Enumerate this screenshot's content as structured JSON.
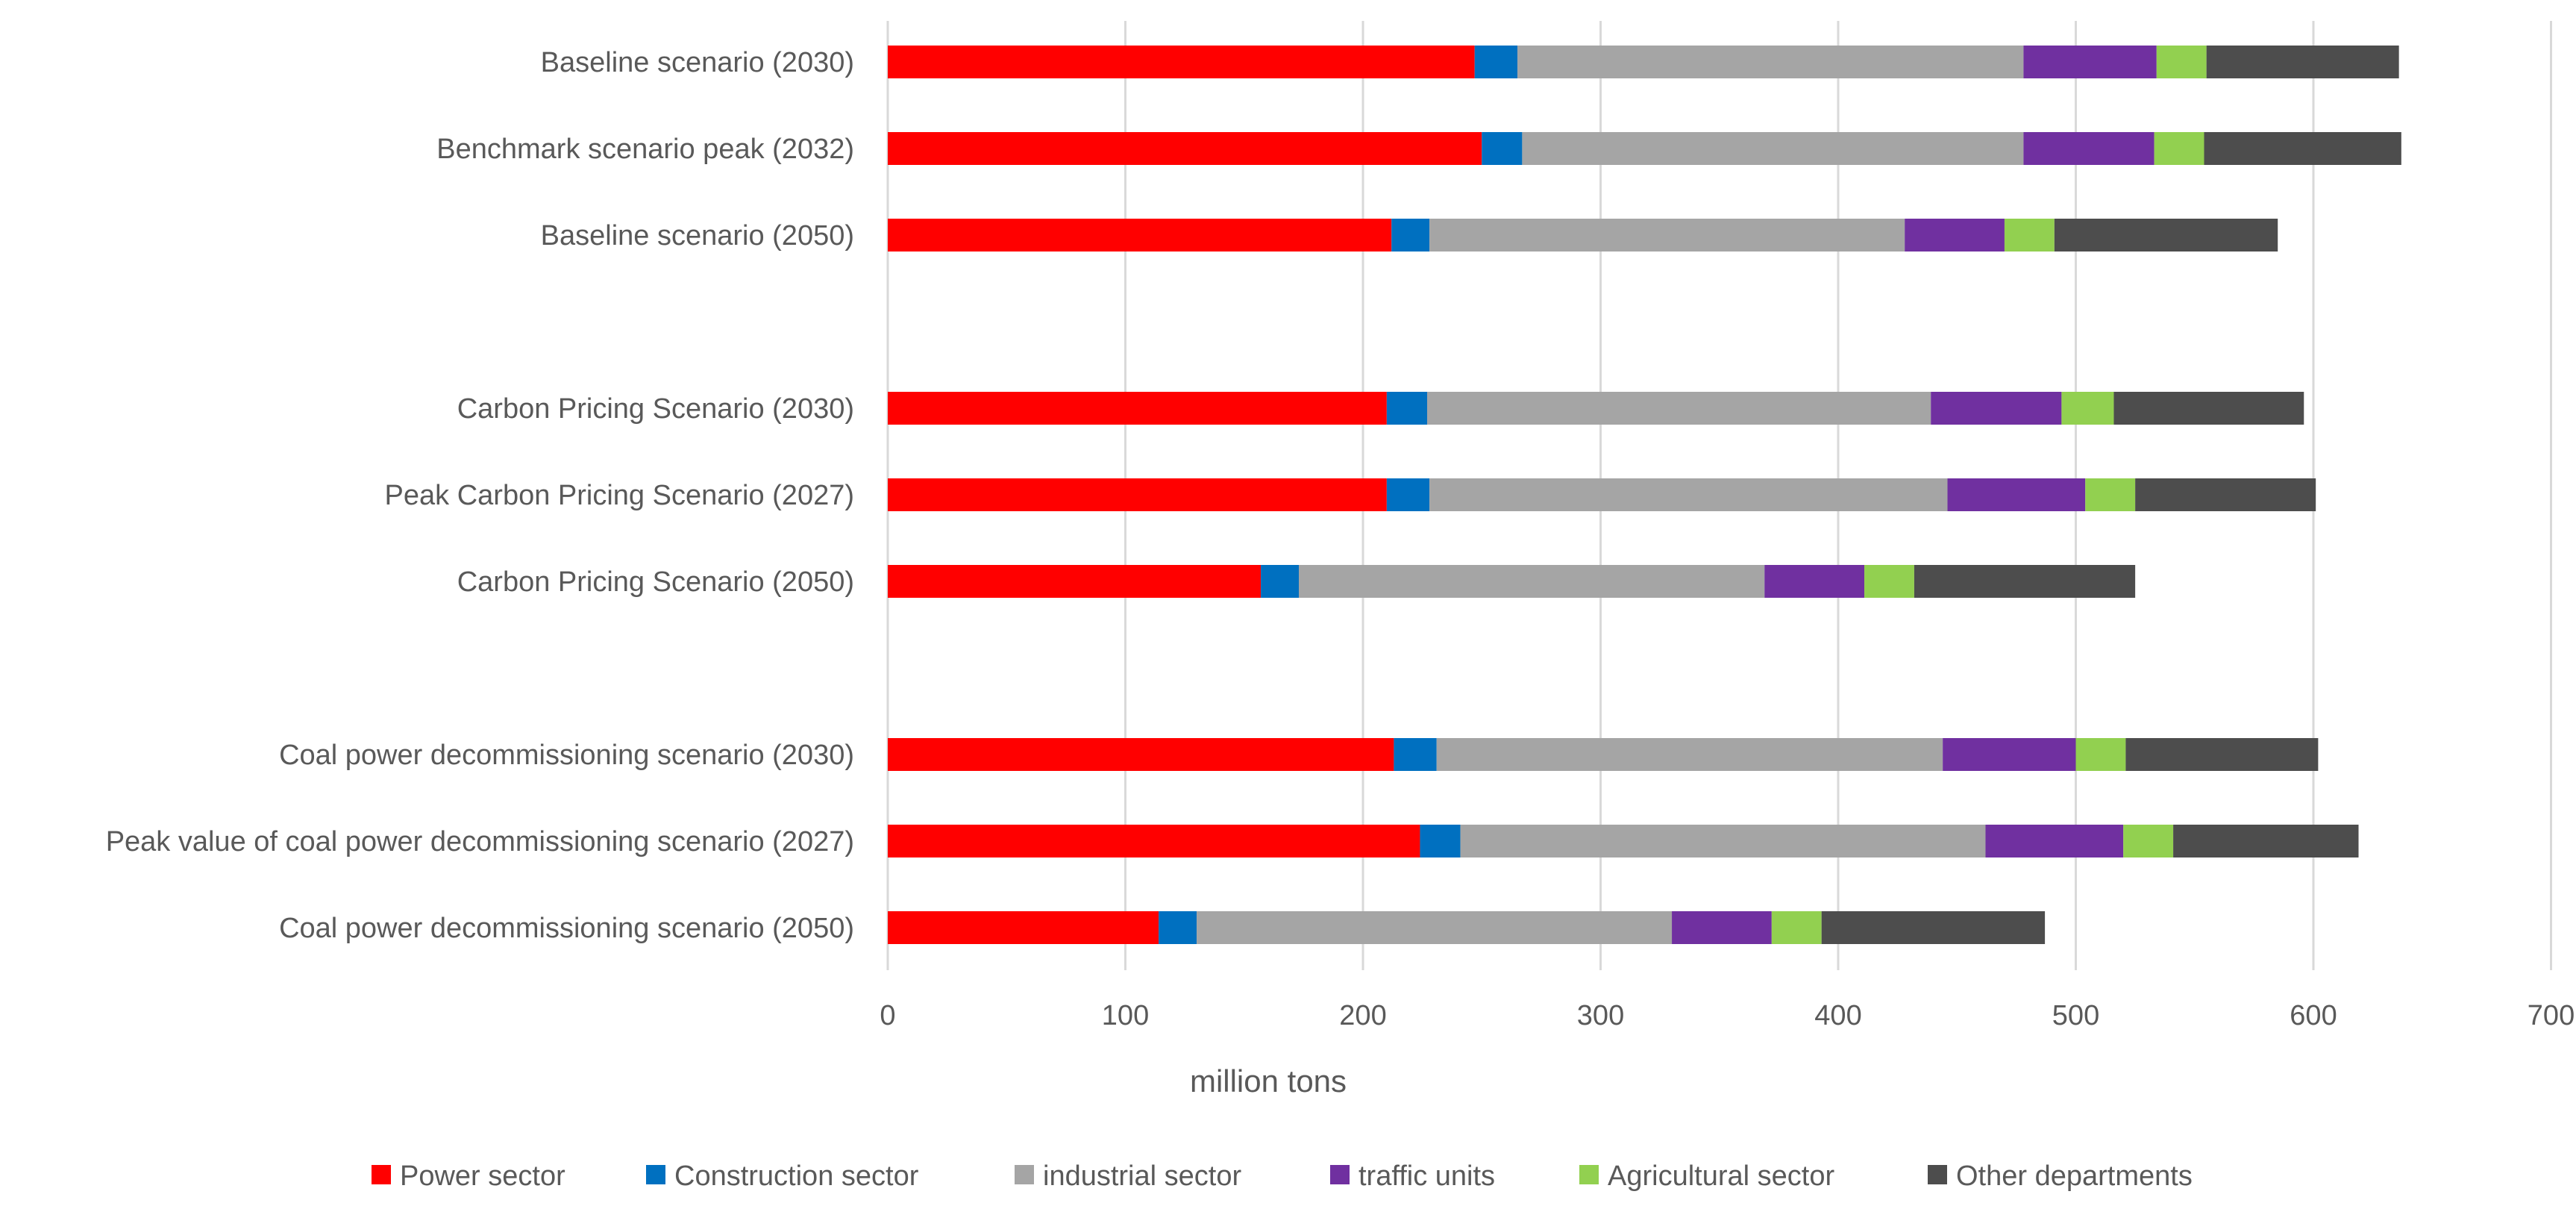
{
  "chart_data": {
    "type": "bar",
    "orientation": "horizontal",
    "stacked": true,
    "title": "",
    "xlabel": "million tons",
    "ylabel": "",
    "xlim": [
      0,
      700
    ],
    "xticks": [
      0,
      100,
      200,
      300,
      400,
      500,
      600,
      700
    ],
    "grid": "vertical",
    "legend_position": "bottom",
    "categories": [
      "Baseline scenario (2030)",
      "Benchmark scenario peak (2032)",
      "Baseline scenario (2050)",
      "Carbon Pricing Scenario (2030)",
      "Peak Carbon Pricing Scenario (2027)",
      "Carbon Pricing Scenario (2050)",
      "Coal power decommissioning scenario (2030)",
      "Peak value of coal power decommissioning scenario (2027)",
      "Coal power decommissioning scenario (2050)"
    ],
    "category_slots": [
      0,
      1,
      2,
      4,
      5,
      6,
      8,
      9,
      10
    ],
    "series": [
      {
        "name": "Power sector",
        "color": "#ff0000",
        "values": [
          247,
          250,
          212,
          210,
          210,
          157,
          213,
          224,
          114
        ]
      },
      {
        "name": "Construction sector",
        "color": "#0070c0",
        "values": [
          18,
          17,
          16,
          17,
          18,
          16,
          18,
          17,
          16
        ]
      },
      {
        "name": "industrial sector",
        "color": "#a5a5a5",
        "values": [
          213,
          211,
          200,
          212,
          218,
          196,
          213,
          221,
          200
        ]
      },
      {
        "name": "traffic units",
        "color": "#7030a0",
        "values": [
          56,
          55,
          42,
          55,
          58,
          42,
          56,
          58,
          42
        ]
      },
      {
        "name": "Agricultural sector",
        "color": "#92d050",
        "values": [
          21,
          21,
          21,
          22,
          21,
          21,
          21,
          21,
          21
        ]
      },
      {
        "name": "Other departments",
        "color": "#4d4d4d",
        "values": [
          81,
          83,
          94,
          80,
          76,
          93,
          81,
          78,
          94
        ]
      }
    ]
  }
}
